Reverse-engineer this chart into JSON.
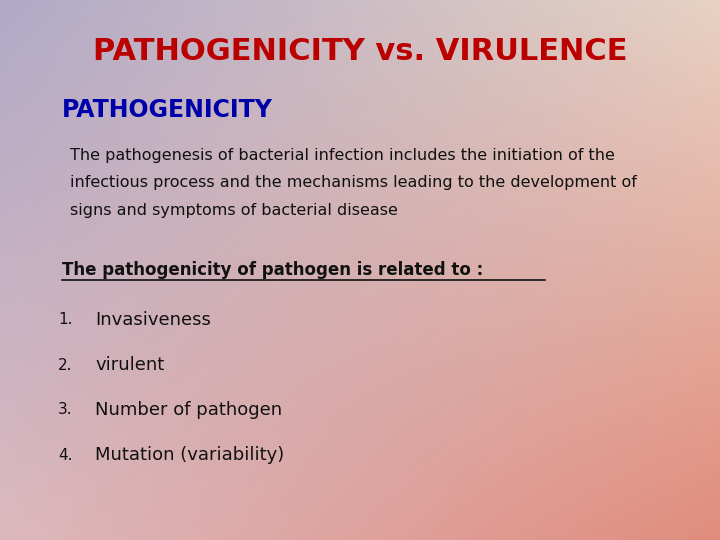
{
  "title": "PATHOGENICITY vs. VIRULENCE",
  "title_color": "#bb0000",
  "title_fontsize": 22,
  "subtitle": "PATHOGENICITY",
  "subtitle_color": "#0000aa",
  "subtitle_fontsize": 17,
  "body_lines": [
    "The pathogenesis of bacterial infection includes the initiation of the",
    "infectious process and the mechanisms leading to the development of",
    "signs and symptoms of bacterial disease"
  ],
  "body_color": "#111111",
  "body_fontsize": 11.5,
  "related_text": "The pathogenicity of pathogen is related to :",
  "related_color": "#111111",
  "related_fontsize": 12,
  "list_items": [
    "Invasiveness",
    "virulent",
    "Number of pathogen",
    "Mutation (variability)"
  ],
  "list_color": "#111111",
  "list_fontsize": 13,
  "number_fontsize": 11,
  "tl": [
    176,
    170,
    200
  ],
  "tr": [
    232,
    210,
    195
  ],
  "bl": [
    220,
    185,
    190
  ],
  "br": [
    225,
    140,
    125
  ]
}
